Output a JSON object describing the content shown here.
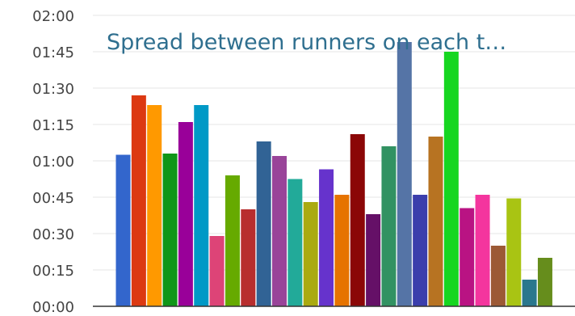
{
  "chart_data": {
    "type": "bar",
    "title": "Spread between runners on each t…",
    "xlabel": "",
    "ylabel": "",
    "ylim": [
      0,
      120
    ],
    "y_ticks": [
      "00:00",
      "00:15",
      "00:30",
      "00:45",
      "01:00",
      "01:15",
      "01:30",
      "01:45",
      "02:00"
    ],
    "y_tick_values": [
      0,
      15,
      30,
      45,
      60,
      75,
      90,
      105,
      120
    ],
    "grid": true,
    "legend": "none",
    "values_minutes": [
      62.5,
      87,
      83,
      63,
      76,
      83,
      29,
      54,
      40,
      68,
      62,
      52.5,
      43,
      56.5,
      46,
      71,
      38,
      66,
      109,
      46,
      70,
      105,
      40.5,
      46,
      25,
      44.5,
      11,
      20
    ],
    "colors": [
      "#3366cc",
      "#dc3912",
      "#ff9900",
      "#109618",
      "#990099",
      "#0099c6",
      "#dd4477",
      "#66aa00",
      "#b82e2e",
      "#316395",
      "#994499",
      "#22aa99",
      "#aaaa11",
      "#6633cc",
      "#e67300",
      "#8b0707",
      "#651067",
      "#329262",
      "#5574a6",
      "#3b3eac",
      "#b77322",
      "#16d620",
      "#b91383",
      "#f4359e",
      "#9c5935",
      "#a9c413",
      "#2a778d",
      "#668d1c"
    ]
  }
}
